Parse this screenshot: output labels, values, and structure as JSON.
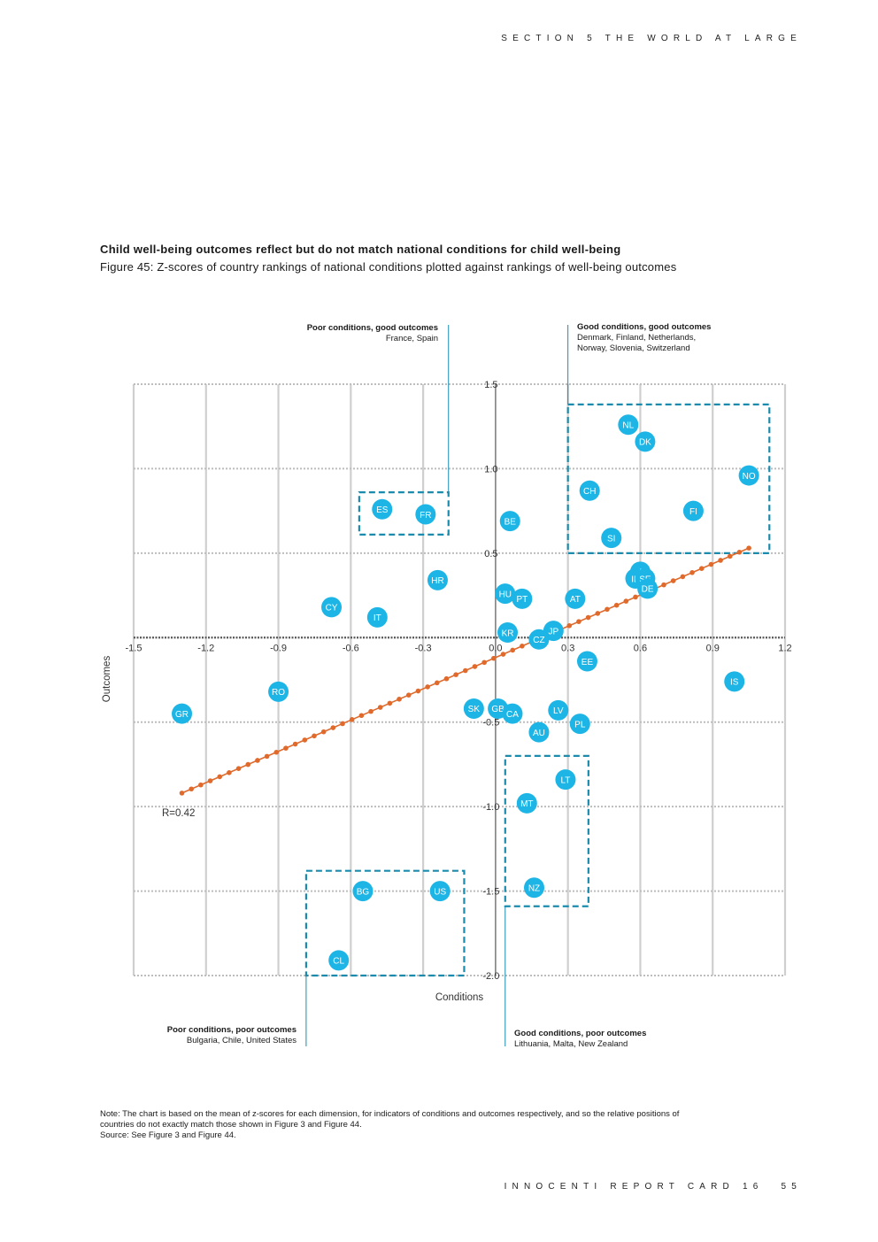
{
  "header": {
    "section": "SECTION 5 THE WORLD AT LARGE"
  },
  "title": "Child well-being outcomes reflect but do not match national conditions for child well-being",
  "subtitle": "Figure 45: Z-scores of country rankings of national conditions plotted against rankings of well-being outcomes",
  "annotations": {
    "top_left": {
      "heading": "Poor conditions, good outcomes",
      "countries": "France, Spain"
    },
    "top_right": {
      "heading": "Good conditions, good outcomes",
      "line1": "Denmark, Finland, Netherlands,",
      "line2": "Norway, Slovenia, Switzerland"
    },
    "bottom_left": {
      "heading": "Poor conditions, poor outcomes",
      "countries": "Bulgaria, Chile, United States"
    },
    "bottom_right": {
      "heading": "Good conditions, poor outcomes",
      "countries": "Lithuania, Malta,  New Zealand"
    }
  },
  "chart_data": {
    "type": "scatter",
    "xlabel": "Conditions",
    "ylabel": "Outcomes",
    "xlim": [
      -1.5,
      1.2
    ],
    "ylim": [
      -2.0,
      1.5
    ],
    "x_ticks": [
      "-1.5",
      "-1.2",
      "-0.9",
      "-0.6",
      "-0.3",
      "0.0",
      "0.3",
      "0.6",
      "0.9",
      "1.2"
    ],
    "y_ticks": [
      "1.5",
      "1.0",
      "0.5",
      "-0.5",
      "-1.0",
      "-1.5",
      "-2.0"
    ],
    "r_label": "R=0.42",
    "trendline": {
      "x0": -1.3,
      "y0": -0.92,
      "x1": 1.05,
      "y1": 0.53
    },
    "points": [
      {
        "code": "NL",
        "x": 0.55,
        "y": 1.26
      },
      {
        "code": "DK",
        "x": 0.62,
        "y": 1.16
      },
      {
        "code": "NO",
        "x": 1.05,
        "y": 0.96
      },
      {
        "code": "CH",
        "x": 0.39,
        "y": 0.87
      },
      {
        "code": "FI",
        "x": 0.82,
        "y": 0.75
      },
      {
        "code": "SI",
        "x": 0.48,
        "y": 0.59
      },
      {
        "code": "ES",
        "x": -0.47,
        "y": 0.76
      },
      {
        "code": "FR",
        "x": -0.29,
        "y": 0.73
      },
      {
        "code": "BE",
        "x": 0.06,
        "y": 0.69
      },
      {
        "code": "HR",
        "x": -0.24,
        "y": 0.34
      },
      {
        "code": "LU",
        "x": 0.6,
        "y": 0.39
      },
      {
        "code": "IE",
        "x": 0.58,
        "y": 0.35
      },
      {
        "code": "SE",
        "x": 0.62,
        "y": 0.35
      },
      {
        "code": "DE",
        "x": 0.63,
        "y": 0.29
      },
      {
        "code": "HU",
        "x": 0.04,
        "y": 0.26
      },
      {
        "code": "PT",
        "x": 0.11,
        "y": 0.23
      },
      {
        "code": "AT",
        "x": 0.33,
        "y": 0.23
      },
      {
        "code": "CY",
        "x": -0.68,
        "y": 0.18
      },
      {
        "code": "IT",
        "x": -0.49,
        "y": 0.12
      },
      {
        "code": "KR",
        "x": 0.05,
        "y": 0.03
      },
      {
        "code": "JP",
        "x": 0.24,
        "y": 0.04
      },
      {
        "code": "CZ",
        "x": 0.18,
        "y": -0.01
      },
      {
        "code": "EE",
        "x": 0.38,
        "y": -0.14
      },
      {
        "code": "IS",
        "x": 0.99,
        "y": -0.26
      },
      {
        "code": "RO",
        "x": -0.9,
        "y": -0.32
      },
      {
        "code": "GR",
        "x": -1.3,
        "y": -0.45
      },
      {
        "code": "SK",
        "x": -0.09,
        "y": -0.42
      },
      {
        "code": "GB",
        "x": 0.01,
        "y": -0.42
      },
      {
        "code": "CA",
        "x": 0.07,
        "y": -0.45
      },
      {
        "code": "LV",
        "x": 0.26,
        "y": -0.43
      },
      {
        "code": "PL",
        "x": 0.35,
        "y": -0.51
      },
      {
        "code": "AU",
        "x": 0.18,
        "y": -0.56
      },
      {
        "code": "LT",
        "x": 0.29,
        "y": -0.84
      },
      {
        "code": "MT",
        "x": 0.13,
        "y": -0.98
      },
      {
        "code": "NZ",
        "x": 0.16,
        "y": -1.48
      },
      {
        "code": "BG",
        "x": -0.55,
        "y": -1.5
      },
      {
        "code": "US",
        "x": -0.23,
        "y": -1.5
      },
      {
        "code": "CL",
        "x": -0.65,
        "y": -1.91
      }
    ]
  },
  "note": {
    "line1": "Note: The chart is based on the mean of z-scores for each dimension, for indicators of conditions and outcomes respectively, and so the relative positions of",
    "line2": "countries do not exactly match those shown in Figure 3 and Figure 44.",
    "line3": "Source: See Figure 3 and Figure 44."
  },
  "footer": {
    "text": "INNOCENTI REPORT CARD 16",
    "page": "55"
  },
  "colors": {
    "bubble": "#1cb5e6",
    "trend": "#e06a2c",
    "box": "#1a8bac",
    "grid": "#cfcfcf",
    "axis": "#333333"
  }
}
